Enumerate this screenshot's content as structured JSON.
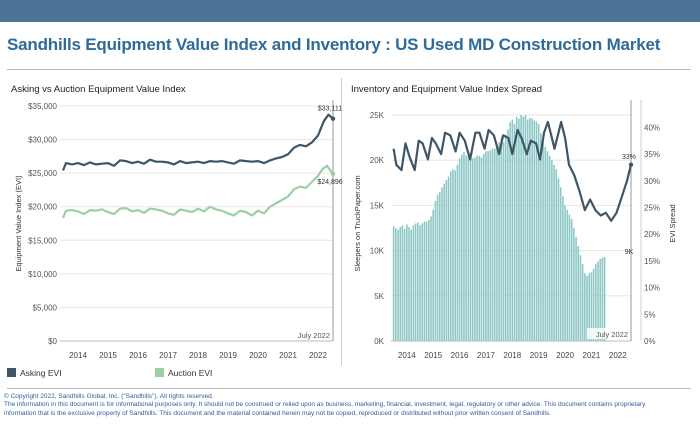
{
  "title": "Sandhills Equipment Value Index and Inventory : US Used MD Construction Market",
  "colors": {
    "topbar": "#4a7396",
    "title": "#2e6b99",
    "asking": "#3f5666",
    "auction": "#9dcfa6",
    "bars": "#8ec8c6",
    "footer": "#2f5d9b"
  },
  "footer": {
    "copyright": "© Copyright 2022, Sandhills Global, Inc. (\"Sandhills\"). All rights reserved.",
    "line1": "The information in this document is for informational purposes only.  It should not be construed or relied upon as business, marketing, financial, investment, legal, regulatory or other advice. This document contains proprietary",
    "line2": "information that is the exclusive property of Sandhills. This document and the material contained herein may not be copied, reproduced or distributed without prior written consent of Sandhills."
  },
  "chart_data": [
    {
      "type": "line",
      "title": "Asking vs Auction Equipment Value Index",
      "ylabel": "Equipment Value Index (EVI)",
      "ylim": [
        0,
        35000
      ],
      "yticks": [
        "$0",
        "$5,000",
        "$10,000",
        "$15,000",
        "$20,000",
        "$25,000",
        "$30,000",
        "$35,000"
      ],
      "xticks": [
        "2014",
        "2015",
        "2016",
        "2017",
        "2018",
        "2019",
        "2020",
        "2021",
        "2022"
      ],
      "xlim": [
        2013.4,
        2022.5
      ],
      "marker_label": "July 2022",
      "marker_x": 2022.5,
      "series": [
        {
          "name": "Asking EVI",
          "end_label": "$33,111",
          "points": [
            [
              2013.5,
              25400
            ],
            [
              2013.6,
              26500
            ],
            [
              2013.8,
              26300
            ],
            [
              2014.0,
              26500
            ],
            [
              2014.2,
              26200
            ],
            [
              2014.4,
              26600
            ],
            [
              2014.6,
              26300
            ],
            [
              2014.8,
              26400
            ],
            [
              2015.0,
              26500
            ],
            [
              2015.2,
              26100
            ],
            [
              2015.4,
              26900
            ],
            [
              2015.6,
              26800
            ],
            [
              2015.8,
              26500
            ],
            [
              2016.0,
              26700
            ],
            [
              2016.2,
              26400
            ],
            [
              2016.4,
              27000
            ],
            [
              2016.6,
              26700
            ],
            [
              2016.8,
              26700
            ],
            [
              2017.0,
              26600
            ],
            [
              2017.2,
              26300
            ],
            [
              2017.4,
              26800
            ],
            [
              2017.6,
              26500
            ],
            [
              2017.8,
              26600
            ],
            [
              2018.0,
              26700
            ],
            [
              2018.2,
              26500
            ],
            [
              2018.4,
              26800
            ],
            [
              2018.6,
              26700
            ],
            [
              2018.8,
              26800
            ],
            [
              2019.0,
              26600
            ],
            [
              2019.2,
              26400
            ],
            [
              2019.4,
              26900
            ],
            [
              2019.6,
              26800
            ],
            [
              2019.8,
              26700
            ],
            [
              2020.0,
              26800
            ],
            [
              2020.2,
              26500
            ],
            [
              2020.4,
              26900
            ],
            [
              2020.6,
              27200
            ],
            [
              2020.8,
              27400
            ],
            [
              2021.0,
              27800
            ],
            [
              2021.2,
              28800
            ],
            [
              2021.4,
              29200
            ],
            [
              2021.6,
              29000
            ],
            [
              2021.8,
              29600
            ],
            [
              2022.0,
              30600
            ],
            [
              2022.2,
              32800
            ],
            [
              2022.35,
              33700
            ],
            [
              2022.5,
              33111
            ]
          ]
        },
        {
          "name": "Auction EVI",
          "end_label": "$24,896",
          "points": [
            [
              2013.5,
              18300
            ],
            [
              2013.6,
              19400
            ],
            [
              2013.8,
              19500
            ],
            [
              2014.0,
              19300
            ],
            [
              2014.2,
              18900
            ],
            [
              2014.4,
              19500
            ],
            [
              2014.6,
              19400
            ],
            [
              2014.8,
              19600
            ],
            [
              2015.0,
              19200
            ],
            [
              2015.2,
              18900
            ],
            [
              2015.4,
              19700
            ],
            [
              2015.6,
              19800
            ],
            [
              2015.8,
              19300
            ],
            [
              2016.0,
              19500
            ],
            [
              2016.2,
              19100
            ],
            [
              2016.4,
              19700
            ],
            [
              2016.6,
              19600
            ],
            [
              2016.8,
              19400
            ],
            [
              2017.0,
              19000
            ],
            [
              2017.2,
              18800
            ],
            [
              2017.4,
              19600
            ],
            [
              2017.6,
              19400
            ],
            [
              2017.8,
              19200
            ],
            [
              2018.0,
              19700
            ],
            [
              2018.2,
              19300
            ],
            [
              2018.4,
              20000
            ],
            [
              2018.6,
              19600
            ],
            [
              2018.8,
              19400
            ],
            [
              2019.0,
              19000
            ],
            [
              2019.2,
              18700
            ],
            [
              2019.4,
              19400
            ],
            [
              2019.6,
              19200
            ],
            [
              2019.8,
              18700
            ],
            [
              2020.0,
              19400
            ],
            [
              2020.2,
              19000
            ],
            [
              2020.4,
              20000
            ],
            [
              2020.6,
              20500
            ],
            [
              2020.8,
              21000
            ],
            [
              2021.0,
              21500
            ],
            [
              2021.2,
              22600
            ],
            [
              2021.4,
              23000
            ],
            [
              2021.6,
              22800
            ],
            [
              2021.8,
              23700
            ],
            [
              2022.0,
              24600
            ],
            [
              2022.15,
              25600
            ],
            [
              2022.3,
              26100
            ],
            [
              2022.45,
              25200
            ],
            [
              2022.5,
              24896
            ]
          ]
        }
      ]
    },
    {
      "type": "bar",
      "title": "Inventory and Equipment Value Index Spread",
      "ylabel": "Sleepers on TruckPaper.com",
      "y2label": "EVI Spread",
      "ylim": [
        0,
        26000
      ],
      "yticks": [
        "0K",
        "5K",
        "10K",
        "15K",
        "20K",
        "25K"
      ],
      "y2lim": [
        0,
        0.44
      ],
      "y2ticks": [
        "0%",
        "5%",
        "10%",
        "15%",
        "20%",
        "25%",
        "30%",
        "35%",
        "40%"
      ],
      "xticks": [
        "2014",
        "2015",
        "2016",
        "2017",
        "2018",
        "2019",
        "2020",
        "2021",
        "2022"
      ],
      "xlim": [
        2013.4,
        2022.5
      ],
      "marker_label": "July 2022",
      "marker_x": 2022.5,
      "bars": {
        "name": "Sleepers on TruckPaper.com",
        "end_label": "9K",
        "x_start": 2013.5,
        "step": 0.083333,
        "values": [
          12700,
          12500,
          12300,
          12600,
          12800,
          12400,
          12900,
          12600,
          12300,
          12800,
          13000,
          13100,
          12800,
          13000,
          13200,
          13200,
          13400,
          13800,
          14500,
          15500,
          16200,
          16500,
          17000,
          17400,
          17800,
          18200,
          18800,
          19000,
          18900,
          19500,
          20200,
          20600,
          20900,
          20500,
          21000,
          20800,
          20200,
          20300,
          20500,
          20500,
          20300,
          20700,
          21000,
          21000,
          21100,
          21300,
          21300,
          21500,
          22000,
          22500,
          22000,
          22800,
          23400,
          24200,
          24500,
          24000,
          24800,
          24600,
          25000,
          24800,
          25000,
          24500,
          24700,
          24600,
          24400,
          24300,
          24000,
          23000,
          22000,
          21500,
          21000,
          20500,
          20000,
          19500,
          19000,
          18000,
          17000,
          16000,
          15000,
          14500,
          14000,
          13500,
          12500,
          11500,
          10500,
          9500,
          8500,
          7500,
          7200,
          7500,
          7600,
          8000,
          8500,
          8800,
          9100,
          9200,
          9300
        ]
      },
      "series": [
        {
          "name": "EVI Spread",
          "end_label": "33%",
          "points": [
            [
              2013.5,
              0.36
            ],
            [
              2013.6,
              0.33
            ],
            [
              2013.8,
              0.32
            ],
            [
              2013.95,
              0.37
            ],
            [
              2014.1,
              0.345
            ],
            [
              2014.3,
              0.32
            ],
            [
              2014.45,
              0.375
            ],
            [
              2014.6,
              0.37
            ],
            [
              2014.8,
              0.34
            ],
            [
              2014.95,
              0.38
            ],
            [
              2015.1,
              0.37
            ],
            [
              2015.3,
              0.35
            ],
            [
              2015.45,
              0.39
            ],
            [
              2015.65,
              0.385
            ],
            [
              2015.85,
              0.355
            ],
            [
              2016.0,
              0.39
            ],
            [
              2016.2,
              0.375
            ],
            [
              2016.4,
              0.34
            ],
            [
              2016.6,
              0.39
            ],
            [
              2016.75,
              0.39
            ],
            [
              2016.95,
              0.36
            ],
            [
              2017.1,
              0.395
            ],
            [
              2017.3,
              0.385
            ],
            [
              2017.5,
              0.35
            ],
            [
              2017.65,
              0.385
            ],
            [
              2017.85,
              0.38
            ],
            [
              2018.0,
              0.35
            ],
            [
              2018.2,
              0.395
            ],
            [
              2018.35,
              0.38
            ],
            [
              2018.55,
              0.35
            ],
            [
              2018.7,
              0.375
            ],
            [
              2018.9,
              0.37
            ],
            [
              2019.05,
              0.34
            ],
            [
              2019.2,
              0.39
            ],
            [
              2019.35,
              0.41
            ],
            [
              2019.5,
              0.38
            ],
            [
              2019.6,
              0.36
            ],
            [
              2019.75,
              0.39
            ],
            [
              2019.85,
              0.41
            ],
            [
              2020.0,
              0.38
            ],
            [
              2020.15,
              0.33
            ],
            [
              2020.35,
              0.31
            ],
            [
              2020.55,
              0.28
            ],
            [
              2020.75,
              0.245
            ],
            [
              2020.95,
              0.265
            ],
            [
              2021.15,
              0.245
            ],
            [
              2021.35,
              0.235
            ],
            [
              2021.55,
              0.24
            ],
            [
              2021.75,
              0.225
            ],
            [
              2021.95,
              0.24
            ],
            [
              2022.15,
              0.27
            ],
            [
              2022.35,
              0.3
            ],
            [
              2022.5,
              0.33
            ]
          ]
        }
      ]
    }
  ]
}
